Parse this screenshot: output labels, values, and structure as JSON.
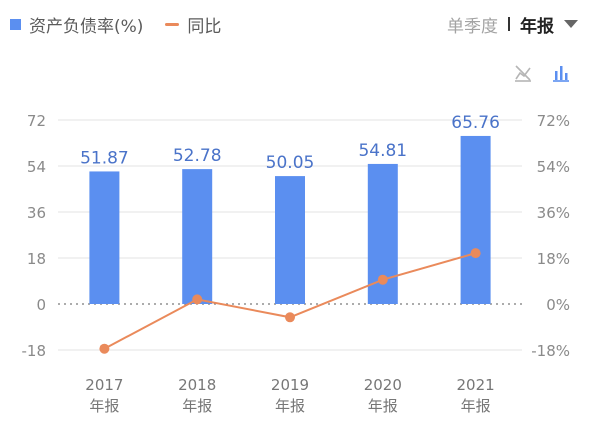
{
  "legend": {
    "bar_label": "资产负债率(%)",
    "line_label": "同比"
  },
  "period_selector": {
    "option_quarter": "单季度",
    "option_year": "年报"
  },
  "icons": {
    "toggle_line": "line-chart-off-icon",
    "toggle_bar": "bar-chart-icon"
  },
  "colors": {
    "bar": "#5b8ff0",
    "line": "#ea8a5b",
    "bar_label": "#4a73c9"
  },
  "chart_data": {
    "type": "bar",
    "categories": [
      "2017\n年报",
      "2018\n年报",
      "2019\n年报",
      "2020\n年报",
      "2021\n年报"
    ],
    "series": [
      {
        "name": "资产负债率(%)",
        "type": "bar",
        "axis": "left",
        "values": [
          51.87,
          52.78,
          50.05,
          54.81,
          65.76
        ]
      },
      {
        "name": "同比",
        "type": "line",
        "axis": "right",
        "values": [
          -17.5,
          1.8,
          -5.2,
          9.5,
          19.9
        ]
      }
    ],
    "y_left": {
      "ticks": [
        "72",
        "54",
        "36",
        "18",
        "0",
        "-18"
      ],
      "ylim": [
        -18,
        72
      ]
    },
    "y_right": {
      "ticks": [
        "72%",
        "54%",
        "36%",
        "18%",
        "0%",
        "-18%"
      ],
      "ylim": [
        -18,
        72
      ]
    },
    "zero_line": "dotted",
    "grid": true
  }
}
